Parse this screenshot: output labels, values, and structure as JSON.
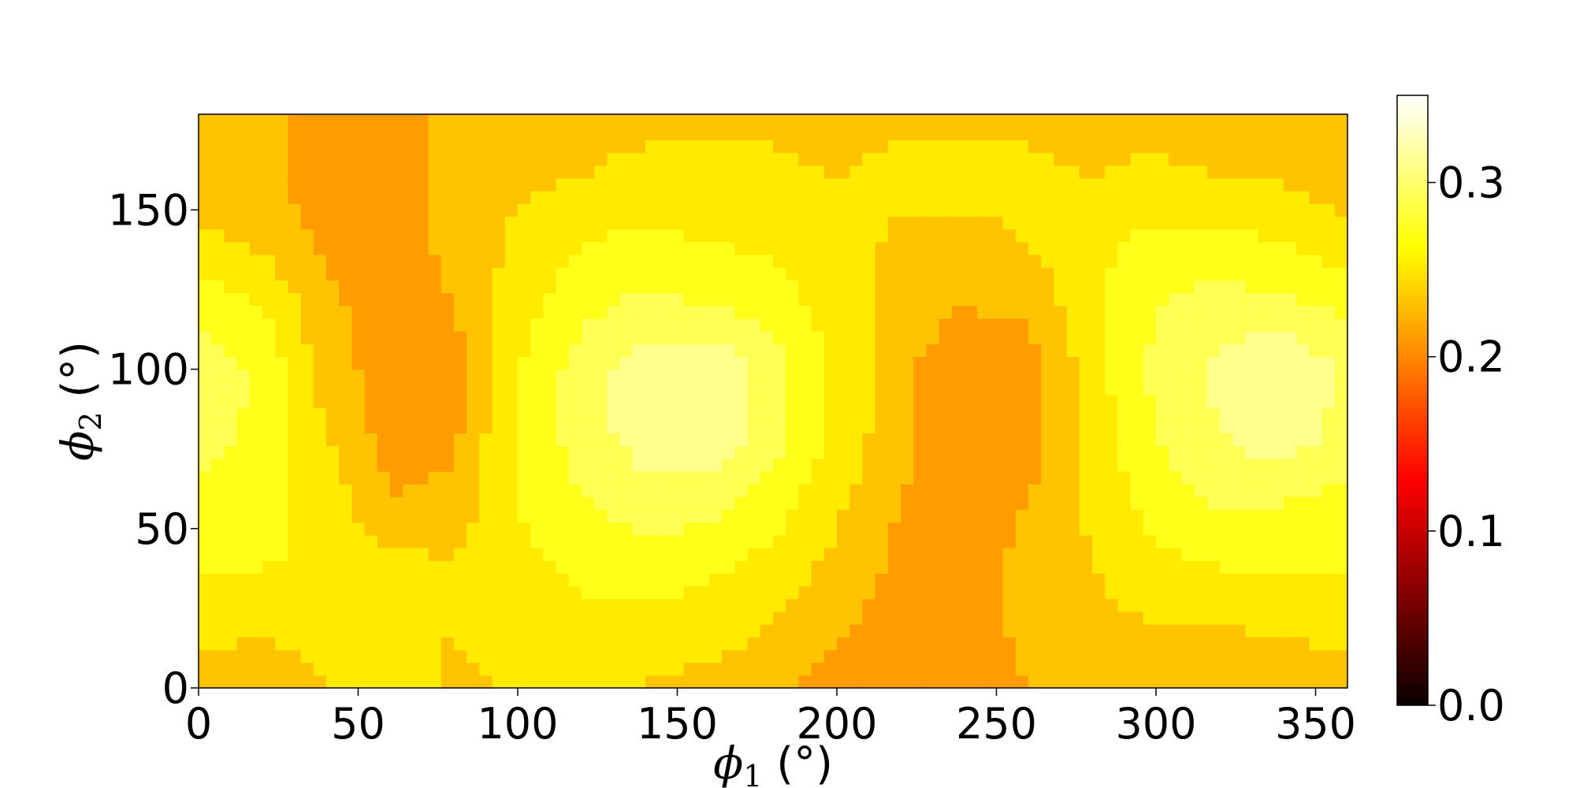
{
  "chart_data": {
    "type": "heatmap",
    "title": "",
    "xlabel": {
      "symbol": "ϕ",
      "subscript": "1",
      "unit": " (°)"
    },
    "ylabel": {
      "symbol": "ϕ",
      "subscript": "2",
      "unit": " (°)"
    },
    "xlim": [
      0,
      360
    ],
    "ylim": [
      0,
      180
    ],
    "xticks": [
      0,
      50,
      100,
      150,
      200,
      250,
      300,
      350
    ],
    "yticks": [
      0,
      50,
      100,
      150
    ],
    "xtick_labels": [
      "0",
      "50",
      "100",
      "150",
      "200",
      "250",
      "300",
      "350"
    ],
    "ytick_labels": [
      "0",
      "50",
      "100",
      "150"
    ],
    "grid": false,
    "colormap": "hot",
    "colorbar": {
      "range": [
        0.0,
        0.35
      ],
      "ticks": [
        0.0,
        0.1,
        0.2,
        0.3
      ],
      "tick_labels": [
        "0.0",
        "0.1",
        "0.2",
        "0.3"
      ]
    },
    "x": [
      0,
      20,
      40,
      60,
      80,
      100,
      120,
      140,
      160,
      180,
      200,
      220,
      240,
      260,
      280,
      300,
      320,
      340,
      360
    ],
    "y": [
      0,
      20,
      40,
      60,
      80,
      100,
      120,
      140,
      160,
      180
    ],
    "z": [
      [
        0.235,
        0.232,
        0.24,
        0.245,
        0.238,
        0.24,
        0.245,
        0.238,
        0.232,
        0.225,
        0.21,
        0.215,
        0.215,
        0.22,
        0.23,
        0.23,
        0.23,
        0.232,
        0.235
      ],
      [
        0.245,
        0.242,
        0.245,
        0.245,
        0.24,
        0.25,
        0.255,
        0.255,
        0.25,
        0.24,
        0.225,
        0.21,
        0.21,
        0.225,
        0.235,
        0.24,
        0.24,
        0.242,
        0.245
      ],
      [
        0.265,
        0.262,
        0.255,
        0.245,
        0.24,
        0.255,
        0.265,
        0.27,
        0.265,
        0.255,
        0.235,
        0.215,
        0.21,
        0.225,
        0.24,
        0.255,
        0.262,
        0.265,
        0.265
      ],
      [
        0.275,
        0.27,
        0.25,
        0.22,
        0.225,
        0.26,
        0.28,
        0.295,
        0.29,
        0.27,
        0.245,
        0.22,
        0.21,
        0.22,
        0.245,
        0.27,
        0.285,
        0.282,
        0.275
      ],
      [
        0.29,
        0.275,
        0.24,
        0.21,
        0.215,
        0.265,
        0.29,
        0.31,
        0.32,
        0.29,
        0.255,
        0.225,
        0.205,
        0.21,
        0.25,
        0.28,
        0.3,
        0.315,
        0.29
      ],
      [
        0.295,
        0.275,
        0.23,
        0.21,
        0.21,
        0.26,
        0.29,
        0.31,
        0.32,
        0.29,
        0.255,
        0.225,
        0.205,
        0.21,
        0.25,
        0.285,
        0.305,
        0.32,
        0.295
      ],
      [
        0.275,
        0.26,
        0.225,
        0.21,
        0.22,
        0.25,
        0.275,
        0.285,
        0.28,
        0.27,
        0.25,
        0.23,
        0.22,
        0.225,
        0.255,
        0.28,
        0.29,
        0.285,
        0.275
      ],
      [
        0.245,
        0.235,
        0.215,
        0.21,
        0.225,
        0.245,
        0.26,
        0.265,
        0.26,
        0.255,
        0.25,
        0.235,
        0.235,
        0.24,
        0.255,
        0.265,
        0.265,
        0.26,
        0.245
      ],
      [
        0.23,
        0.225,
        0.21,
        0.215,
        0.225,
        0.235,
        0.24,
        0.245,
        0.245,
        0.245,
        0.24,
        0.248,
        0.245,
        0.245,
        0.24,
        0.245,
        0.24,
        0.238,
        0.23
      ],
      [
        0.232,
        0.228,
        0.21,
        0.212,
        0.225,
        0.232,
        0.235,
        0.235,
        0.235,
        0.235,
        0.232,
        0.235,
        0.235,
        0.235,
        0.232,
        0.232,
        0.23,
        0.23,
        0.232
      ]
    ]
  }
}
